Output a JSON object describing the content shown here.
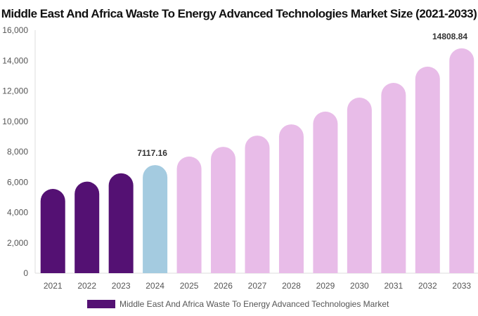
{
  "chart_data": {
    "type": "bar",
    "title": "Middle East And Africa Waste To Energy Advanced Technologies Market Size (2021-2033)",
    "categories": [
      "2021",
      "2022",
      "2023",
      "2024",
      "2025",
      "2026",
      "2027",
      "2028",
      "2029",
      "2030",
      "2031",
      "2032",
      "2033"
    ],
    "series": [
      {
        "name": "Middle East And Africa Waste To Energy Advanced Technologies Market",
        "values": [
          5550,
          6030,
          6580,
          7117.16,
          7680,
          8320,
          9060,
          9800,
          10640,
          11560,
          12530,
          13600,
          14808.84
        ]
      }
    ],
    "data_labels": {
      "3": "7117.16",
      "12": "14808.84"
    },
    "ylim": [
      0,
      16000
    ],
    "yticks": [
      0,
      2000,
      4000,
      6000,
      8000,
      10000,
      12000,
      14000,
      16000
    ],
    "ytick_labels": [
      "0",
      "2,000",
      "4,000",
      "6,000",
      "8,000",
      "10,000",
      "12,000",
      "14,000",
      "16,000"
    ],
    "grid": false,
    "legend": "bottom",
    "colors": {
      "historical": "#541173",
      "current": "#a4cbe0",
      "forecast": "#e8bce8"
    }
  }
}
